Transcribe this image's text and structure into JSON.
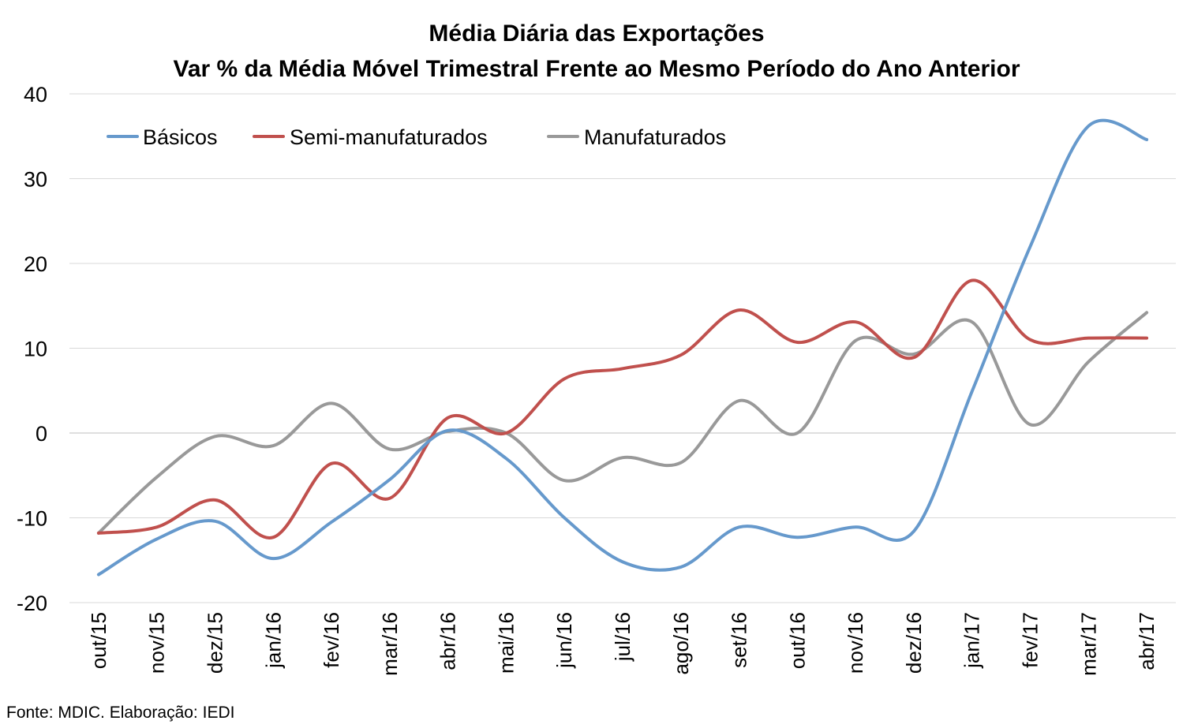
{
  "chart_data": {
    "type": "line",
    "title": "Média Diária das Exportações",
    "subtitle": "Var % da Média Móvel Trimestral Frente ao Mesmo Período do Ano Anterior",
    "xlabel": "",
    "ylabel": "",
    "categories": [
      "out/15",
      "nov/15",
      "dez/15",
      "jan/16",
      "fev/16",
      "mar/16",
      "abr/16",
      "mai/16",
      "jun/16",
      "jul/16",
      "ago/16",
      "set/16",
      "out/16",
      "nov/16",
      "dez/16",
      "jan/17",
      "fev/17",
      "mar/17",
      "abr/17"
    ],
    "ylim": [
      -20,
      40
    ],
    "yticks": [
      -20,
      -10,
      0,
      10,
      20,
      30,
      40
    ],
    "ytick_labels": [
      "-20",
      "-10",
      "0",
      "10",
      "20",
      "30",
      "40"
    ],
    "grid": true,
    "legend_position": "top-left",
    "series": [
      {
        "name": "Básicos",
        "color": "#6699cc",
        "values": [
          -16.7,
          -12.5,
          -10.4,
          -14.8,
          -10.5,
          -5.5,
          0.3,
          -3.0,
          -10.0,
          -15.2,
          -15.8,
          -11.1,
          -12.3,
          -11.1,
          -11.6,
          4.9,
          22.0,
          36.2,
          34.6
        ]
      },
      {
        "name": "Semi-manufaturados",
        "color": "#c0504d",
        "values": [
          -11.8,
          -11.1,
          -7.9,
          -12.3,
          -3.6,
          -7.7,
          1.8,
          0.0,
          6.4,
          7.6,
          9.2,
          14.5,
          10.7,
          13.1,
          8.9,
          18.0,
          11.0,
          11.2,
          11.2
        ]
      },
      {
        "name": "Manufaturados",
        "color": "#999999",
        "values": [
          -11.8,
          -5.2,
          -0.4,
          -1.5,
          3.5,
          -1.9,
          0.2,
          0.0,
          -5.6,
          -2.9,
          -3.5,
          3.8,
          0.0,
          10.9,
          9.3,
          13.1,
          1.0,
          8.4,
          14.2
        ]
      }
    ]
  },
  "source_note": "Fonte: MDIC. Elaboração: IEDI"
}
